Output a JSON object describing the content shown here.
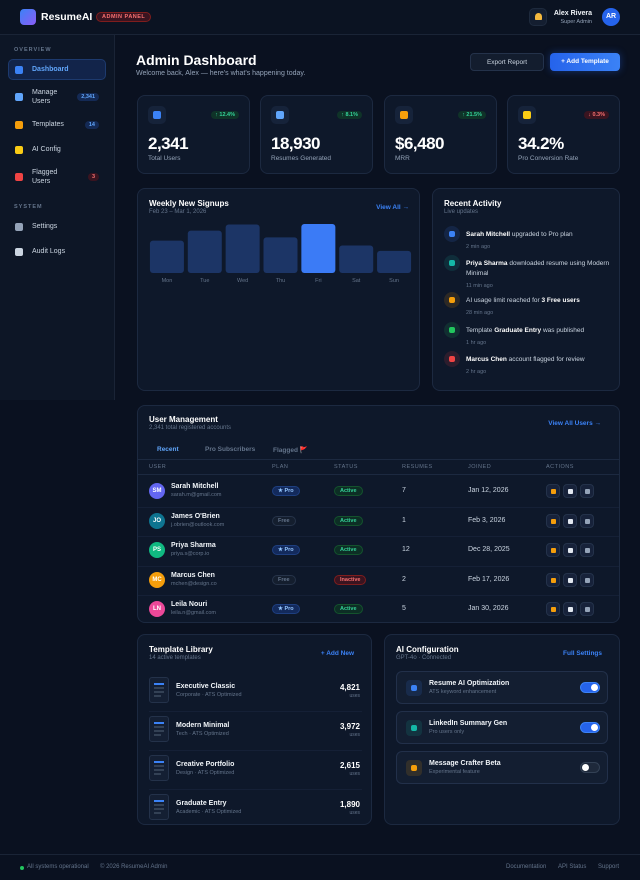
{
  "header": {
    "logo": "ResumeAI",
    "badge": "ADMIN PANEL",
    "user_name": "Alex Rivera",
    "user_role": "Super Admin",
    "avatar": "AR"
  },
  "sidebar": {
    "sections": [
      {
        "title": "OVERVIEW",
        "items": [
          {
            "label": "Dashboard",
            "active": true,
            "color": "#3b82f6"
          },
          {
            "label": "Manage Users",
            "badge": "2,341",
            "badge_tone": "blue",
            "color": "#60a5fa"
          },
          {
            "label": "Templates",
            "badge": "14",
            "badge_tone": "blue",
            "color": "#f59e0b"
          },
          {
            "label": "AI Config",
            "color": "#facc15"
          },
          {
            "label": "Flagged Users",
            "badge": "3",
            "badge_tone": "red",
            "color": "#ef4444"
          }
        ]
      },
      {
        "title": "SYSTEM",
        "items": [
          {
            "label": "Settings",
            "color": "#94a3b8"
          },
          {
            "label": "Audit Logs",
            "color": "#cbd5e1"
          }
        ]
      }
    ]
  },
  "page": {
    "title": "Admin Dashboard",
    "subtitle": "Welcome back, Alex — here's what's happening today.",
    "buttons": [
      "Export Report",
      "+ Add Template"
    ]
  },
  "stats": [
    {
      "change": "↑ 12.4%",
      "trend": "up",
      "value": "2,341",
      "label": "Total Users",
      "color": "#3b82f6"
    },
    {
      "change": "↑ 8.1%",
      "trend": "up",
      "value": "18,930",
      "label": "Resumes Generated",
      "color": "#60a5fa"
    },
    {
      "change": "↑ 21.5%",
      "trend": "up",
      "value": "$6,480",
      "label": "MRR",
      "color": "#f59e0b"
    },
    {
      "change": "↓ 0.3%",
      "trend": "down",
      "value": "34.2%",
      "label": "Pro Conversion Rate",
      "color": "#facc15"
    }
  ],
  "chart_data": {
    "type": "bar",
    "title": "Weekly New Signups",
    "subtitle": "Feb 23 – Mar 1, 2026",
    "link": "View All →",
    "categories": [
      "Mon",
      "Tue",
      "Wed",
      "Thu",
      "Fri",
      "Sat",
      "Sun"
    ],
    "values": [
      186,
      243,
      278,
      204,
      281,
      158,
      127
    ],
    "colors": [
      "#1c3566",
      "#1c3566",
      "#1c3566",
      "#1c3566",
      "#3b7bf6",
      "#1c3566",
      "#1c3566"
    ]
  },
  "activity": {
    "title": "Recent Activity",
    "subtitle": "Live updates",
    "items": [
      {
        "segments": [
          {
            "text": "Sarah Mitchell",
            "bold": true
          },
          {
            "text": " upgraded to Pro plan"
          }
        ],
        "time": "2 min ago",
        "color": "#3b82f6"
      },
      {
        "segments": [
          {
            "text": "Priya Sharma",
            "bold": true
          },
          {
            "text": " downloaded resume using Modern Minimal"
          }
        ],
        "time": "11 min ago",
        "color": "#14b8a6"
      },
      {
        "segments": [
          {
            "text": "AI usage limit reached for "
          },
          {
            "text": "3 Free users",
            "bold": true
          }
        ],
        "time": "28 min ago",
        "color": "#f59e0b"
      },
      {
        "segments": [
          {
            "text": "Template "
          },
          {
            "text": "Graduate Entry",
            "bold": true
          },
          {
            "text": " was published"
          }
        ],
        "time": "1 hr ago",
        "color": "#22c55e"
      },
      {
        "segments": [
          {
            "text": "Marcus Chen",
            "bold": true
          },
          {
            "text": " account flagged for review"
          }
        ],
        "time": "2 hr ago",
        "color": "#ef4444"
      }
    ]
  },
  "users": {
    "title": "User Management",
    "subtitle": "2,341 total registered accounts",
    "link": "View All Users →",
    "tabs": [
      {
        "label": "Recent",
        "active": true
      },
      {
        "label": "Pro Subscribers"
      },
      {
        "label": "Flagged 🚩"
      }
    ],
    "columns": [
      "USER",
      "PLAN",
      "STATUS",
      "RESUMES",
      "JOINED",
      "ACTIONS"
    ],
    "rows": [
      {
        "initials": "SM",
        "color": "#6366f1",
        "name": "Sarah Mitchell",
        "email": "sarah.m@gmail.com",
        "plan": "★ Pro",
        "status": "Active",
        "resumes": "7",
        "joined": "Jan 12, 2026"
      },
      {
        "initials": "JO",
        "color": "#0e7490",
        "name": "James O'Brien",
        "email": "j.obrien@outlook.com",
        "plan": "Free",
        "status": "Active",
        "resumes": "1",
        "joined": "Feb 3, 2026"
      },
      {
        "initials": "PS",
        "color": "#10b981",
        "name": "Priya Sharma",
        "email": "priya.s@corp.io",
        "plan": "★ Pro",
        "status": "Active",
        "resumes": "12",
        "joined": "Dec 28, 2025"
      },
      {
        "initials": "MC",
        "color": "#f59e0b",
        "name": "Marcus Chen",
        "email": "mchen@design.co",
        "plan": "Free",
        "status": "Inactive",
        "resumes": "2",
        "joined": "Feb 17, 2026"
      },
      {
        "initials": "LN",
        "color": "#ec4899",
        "name": "Leila Nouri",
        "email": "leila.n@gmail.com",
        "plan": "★ Pro",
        "status": "Active",
        "resumes": "5",
        "joined": "Jan 30, 2026"
      }
    ]
  },
  "templates": {
    "title": "Template Library",
    "subtitle": "14 active templates",
    "link": "+ Add New",
    "items": [
      {
        "name": "Executive Classic",
        "meta": "Corporate · ATS Optimized",
        "uses": "4,821",
        "unit": "uses"
      },
      {
        "name": "Modern Minimal",
        "meta": "Tech · ATS Optimized",
        "uses": "3,972",
        "unit": "uses"
      },
      {
        "name": "Creative Portfolio",
        "meta": "Design · ATS Optimized",
        "uses": "2,615",
        "unit": "uses"
      },
      {
        "name": "Graduate Entry",
        "meta": "Academic · ATS Optimized",
        "uses": "1,890",
        "unit": "uses"
      }
    ]
  },
  "ai": {
    "title": "AI Configuration",
    "subtitle": "GPT-4o · Connected",
    "link": "Full Settings",
    "items": [
      {
        "name": "Resume AI Optimization",
        "desc": "ATS keyword enhancement",
        "enabled": true,
        "color": "#3b82f6"
      },
      {
        "name": "LinkedIn Summary Gen",
        "desc": "Pro users only",
        "enabled": true,
        "color": "#14b8a6"
      },
      {
        "name": "Message Crafter Beta",
        "desc": "Experimental feature",
        "enabled": false,
        "color": "#f59e0b"
      }
    ]
  },
  "footer": {
    "status": "All systems operational",
    "copyright": "© 2026 ResumeAI Admin",
    "links": [
      "Documentation",
      "API Status",
      "Support"
    ]
  }
}
